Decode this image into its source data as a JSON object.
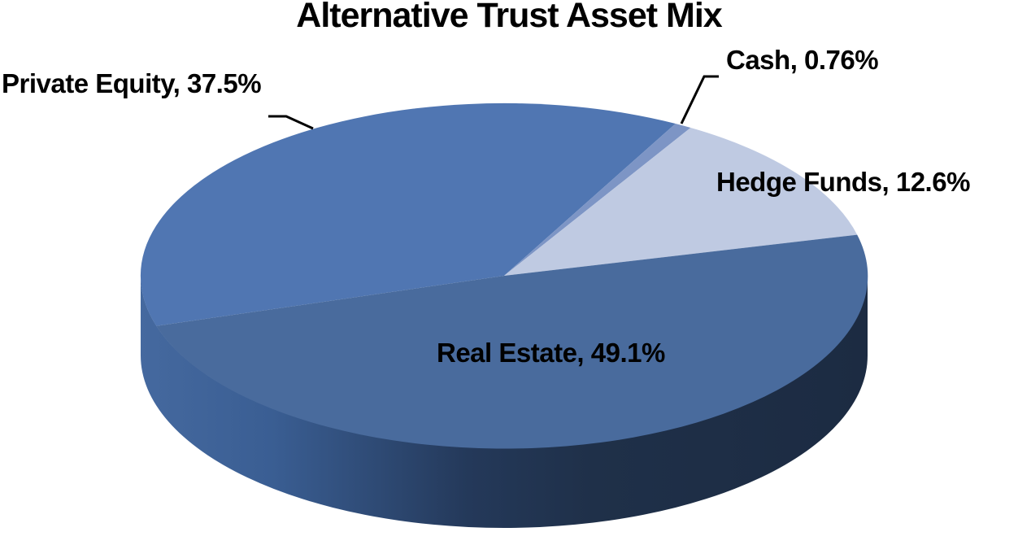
{
  "page": {
    "background": "#ffffff"
  },
  "chart_data": {
    "type": "pie",
    "effect": "3d",
    "title": "Alternative Trust Asset Mix",
    "legend": "none",
    "grid": false,
    "label_text_color": "#000000",
    "leader_line_color": "#000000",
    "rotation_fraction": 0.703,
    "slices": [
      {
        "label": "Private Equity",
        "value": 37.5,
        "display_label": "Private Equity, 37.5%",
        "color": "#5076b2",
        "label_position": "outside-top-left",
        "leader_line": true
      },
      {
        "label": "Cash",
        "value": 0.76,
        "display_label": "Cash, 0.76%",
        "color": "#7d95c5",
        "label_position": "outside-top-right",
        "leader_line": true
      },
      {
        "label": "Hedge Funds",
        "value": 12.6,
        "display_label": "Hedge Funds, 12.6%",
        "color": "#bfcae2",
        "label_position": "outside-right",
        "leader_line": false
      },
      {
        "label": "Real Estate",
        "value": 49.1,
        "display_label": "Real Estate, 49.1%",
        "color": "#496b9d",
        "label_position": "inside",
        "leader_line": false
      }
    ],
    "side_gradient": [
      {
        "offset": 0,
        "color": "#45699f"
      },
      {
        "offset": 0.18,
        "color": "#3a5e93"
      },
      {
        "offset": 0.45,
        "color": "#24395a"
      },
      {
        "offset": 0.62,
        "color": "#1f3049"
      },
      {
        "offset": 1,
        "color": "#1c2b42"
      }
    ]
  }
}
